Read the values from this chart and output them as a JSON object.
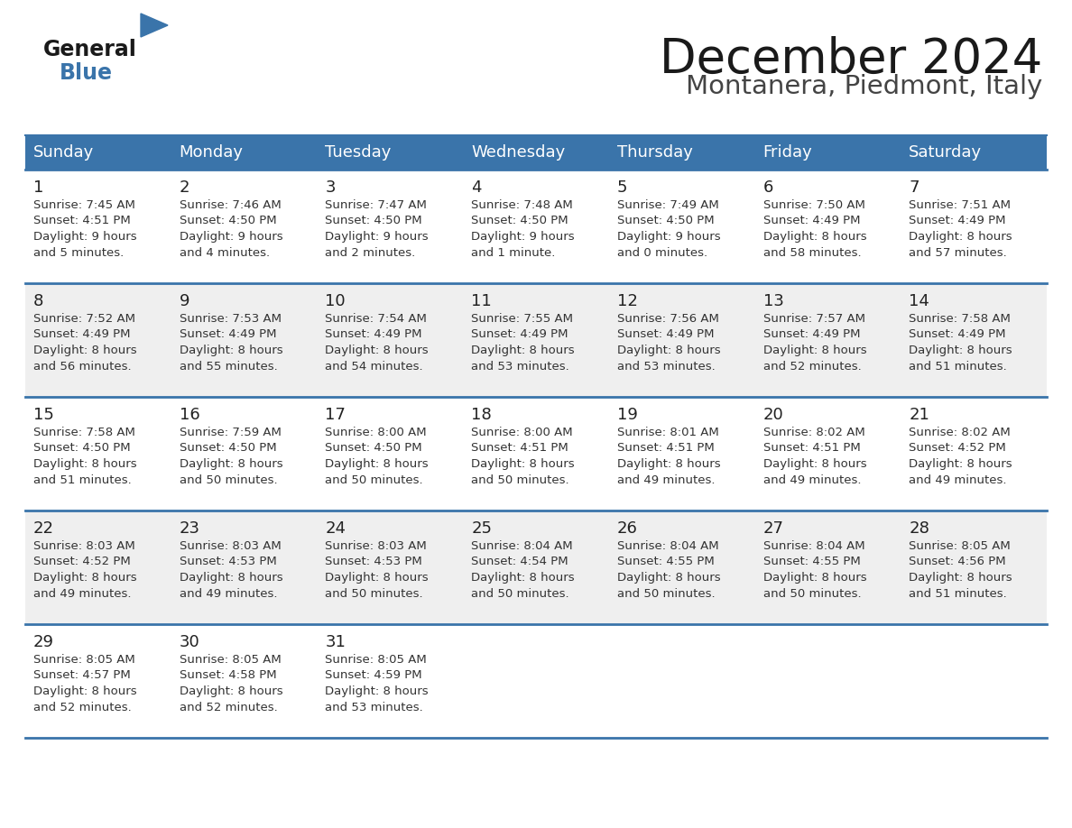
{
  "title": "December 2024",
  "subtitle": "Montanera, Piedmont, Italy",
  "header_bg": "#3a74aa",
  "header_text": "#FFFFFF",
  "cell_text": "#333333",
  "border_color": "#3a74aa",
  "days_of_week": [
    "Sunday",
    "Monday",
    "Tuesday",
    "Wednesday",
    "Thursday",
    "Friday",
    "Saturday"
  ],
  "calendar_data": [
    [
      {
        "day": "1",
        "sunrise": "7:45 AM",
        "sunset": "4:51 PM",
        "daylight_line1": "Daylight: 9 hours",
        "daylight_line2": "and 5 minutes."
      },
      {
        "day": "2",
        "sunrise": "7:46 AM",
        "sunset": "4:50 PM",
        "daylight_line1": "Daylight: 9 hours",
        "daylight_line2": "and 4 minutes."
      },
      {
        "day": "3",
        "sunrise": "7:47 AM",
        "sunset": "4:50 PM",
        "daylight_line1": "Daylight: 9 hours",
        "daylight_line2": "and 2 minutes."
      },
      {
        "day": "4",
        "sunrise": "7:48 AM",
        "sunset": "4:50 PM",
        "daylight_line1": "Daylight: 9 hours",
        "daylight_line2": "and 1 minute."
      },
      {
        "day": "5",
        "sunrise": "7:49 AM",
        "sunset": "4:50 PM",
        "daylight_line1": "Daylight: 9 hours",
        "daylight_line2": "and 0 minutes."
      },
      {
        "day": "6",
        "sunrise": "7:50 AM",
        "sunset": "4:49 PM",
        "daylight_line1": "Daylight: 8 hours",
        "daylight_line2": "and 58 minutes."
      },
      {
        "day": "7",
        "sunrise": "7:51 AM",
        "sunset": "4:49 PM",
        "daylight_line1": "Daylight: 8 hours",
        "daylight_line2": "and 57 minutes."
      }
    ],
    [
      {
        "day": "8",
        "sunrise": "7:52 AM",
        "sunset": "4:49 PM",
        "daylight_line1": "Daylight: 8 hours",
        "daylight_line2": "and 56 minutes."
      },
      {
        "day": "9",
        "sunrise": "7:53 AM",
        "sunset": "4:49 PM",
        "daylight_line1": "Daylight: 8 hours",
        "daylight_line2": "and 55 minutes."
      },
      {
        "day": "10",
        "sunrise": "7:54 AM",
        "sunset": "4:49 PM",
        "daylight_line1": "Daylight: 8 hours",
        "daylight_line2": "and 54 minutes."
      },
      {
        "day": "11",
        "sunrise": "7:55 AM",
        "sunset": "4:49 PM",
        "daylight_line1": "Daylight: 8 hours",
        "daylight_line2": "and 53 minutes."
      },
      {
        "day": "12",
        "sunrise": "7:56 AM",
        "sunset": "4:49 PM",
        "daylight_line1": "Daylight: 8 hours",
        "daylight_line2": "and 53 minutes."
      },
      {
        "day": "13",
        "sunrise": "7:57 AM",
        "sunset": "4:49 PM",
        "daylight_line1": "Daylight: 8 hours",
        "daylight_line2": "and 52 minutes."
      },
      {
        "day": "14",
        "sunrise": "7:58 AM",
        "sunset": "4:49 PM",
        "daylight_line1": "Daylight: 8 hours",
        "daylight_line2": "and 51 minutes."
      }
    ],
    [
      {
        "day": "15",
        "sunrise": "7:58 AM",
        "sunset": "4:50 PM",
        "daylight_line1": "Daylight: 8 hours",
        "daylight_line2": "and 51 minutes."
      },
      {
        "day": "16",
        "sunrise": "7:59 AM",
        "sunset": "4:50 PM",
        "daylight_line1": "Daylight: 8 hours",
        "daylight_line2": "and 50 minutes."
      },
      {
        "day": "17",
        "sunrise": "8:00 AM",
        "sunset": "4:50 PM",
        "daylight_line1": "Daylight: 8 hours",
        "daylight_line2": "and 50 minutes."
      },
      {
        "day": "18",
        "sunrise": "8:00 AM",
        "sunset": "4:51 PM",
        "daylight_line1": "Daylight: 8 hours",
        "daylight_line2": "and 50 minutes."
      },
      {
        "day": "19",
        "sunrise": "8:01 AM",
        "sunset": "4:51 PM",
        "daylight_line1": "Daylight: 8 hours",
        "daylight_line2": "and 49 minutes."
      },
      {
        "day": "20",
        "sunrise": "8:02 AM",
        "sunset": "4:51 PM",
        "daylight_line1": "Daylight: 8 hours",
        "daylight_line2": "and 49 minutes."
      },
      {
        "day": "21",
        "sunrise": "8:02 AM",
        "sunset": "4:52 PM",
        "daylight_line1": "Daylight: 8 hours",
        "daylight_line2": "and 49 minutes."
      }
    ],
    [
      {
        "day": "22",
        "sunrise": "8:03 AM",
        "sunset": "4:52 PM",
        "daylight_line1": "Daylight: 8 hours",
        "daylight_line2": "and 49 minutes."
      },
      {
        "day": "23",
        "sunrise": "8:03 AM",
        "sunset": "4:53 PM",
        "daylight_line1": "Daylight: 8 hours",
        "daylight_line2": "and 49 minutes."
      },
      {
        "day": "24",
        "sunrise": "8:03 AM",
        "sunset": "4:53 PM",
        "daylight_line1": "Daylight: 8 hours",
        "daylight_line2": "and 50 minutes."
      },
      {
        "day": "25",
        "sunrise": "8:04 AM",
        "sunset": "4:54 PM",
        "daylight_line1": "Daylight: 8 hours",
        "daylight_line2": "and 50 minutes."
      },
      {
        "day": "26",
        "sunrise": "8:04 AM",
        "sunset": "4:55 PM",
        "daylight_line1": "Daylight: 8 hours",
        "daylight_line2": "and 50 minutes."
      },
      {
        "day": "27",
        "sunrise": "8:04 AM",
        "sunset": "4:55 PM",
        "daylight_line1": "Daylight: 8 hours",
        "daylight_line2": "and 50 minutes."
      },
      {
        "day": "28",
        "sunrise": "8:05 AM",
        "sunset": "4:56 PM",
        "daylight_line1": "Daylight: 8 hours",
        "daylight_line2": "and 51 minutes."
      }
    ],
    [
      {
        "day": "29",
        "sunrise": "8:05 AM",
        "sunset": "4:57 PM",
        "daylight_line1": "Daylight: 8 hours",
        "daylight_line2": "and 52 minutes."
      },
      {
        "day": "30",
        "sunrise": "8:05 AM",
        "sunset": "4:58 PM",
        "daylight_line1": "Daylight: 8 hours",
        "daylight_line2": "and 52 minutes."
      },
      {
        "day": "31",
        "sunrise": "8:05 AM",
        "sunset": "4:59 PM",
        "daylight_line1": "Daylight: 8 hours",
        "daylight_line2": "and 53 minutes."
      },
      null,
      null,
      null,
      null
    ]
  ]
}
